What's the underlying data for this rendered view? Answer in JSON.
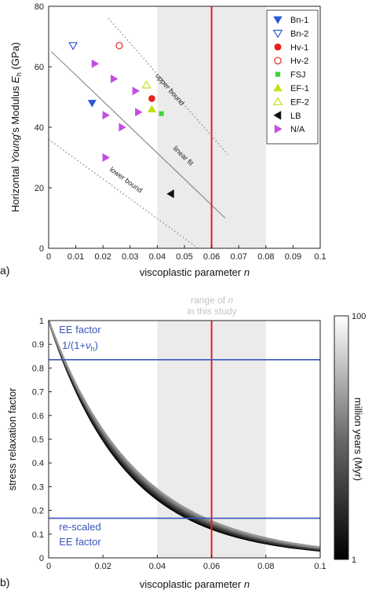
{
  "chart_data": [
    {
      "type": "scatter",
      "panel_label": "a)",
      "xlabel_main": "viscoplastic parameter ",
      "xlabel_var": "n",
      "ylabel_pre": "Horizontal ",
      "ylabel_it": "Young",
      "ylabel_mid": "'s Modulus ",
      "ylabel_var": "E",
      "ylabel_sub": "h",
      "ylabel_unit": " (GPa)",
      "xlim": [
        0,
        0.1
      ],
      "ylim": [
        0,
        80
      ],
      "xticks": [
        "0",
        "0.01",
        "0.02",
        "0.03",
        "0.04",
        "0.05",
        "0.06",
        "0.07",
        "0.08",
        "0.09",
        "0.1"
      ],
      "yticks": [
        "0",
        "20",
        "40",
        "60",
        "80"
      ],
      "shaded_range": [
        0.04,
        0.08
      ],
      "vertical_line": 0.06,
      "fit_lines": [
        {
          "label": "upper bound",
          "x": [
            0.022,
            0.066
          ],
          "y": [
            76,
            31
          ],
          "style": "dotted"
        },
        {
          "label": "linear fit",
          "x": [
            0.001,
            0.065
          ],
          "y": [
            65,
            10
          ],
          "style": "solid"
        },
        {
          "label": "lower bound",
          "x": [
            0.0,
            0.055
          ],
          "y": [
            36,
            0
          ],
          "style": "dotted"
        }
      ],
      "legend": [
        {
          "name": "Bn-1",
          "marker": "tri-down-filled",
          "color": "#2a5bd7"
        },
        {
          "name": "Bn-2",
          "marker": "tri-down-open",
          "color": "#2a5bd7"
        },
        {
          "name": "Hv-1",
          "marker": "circle-filled",
          "color": "#e8201a"
        },
        {
          "name": "Hv-2",
          "marker": "circle-open",
          "color": "#e8201a"
        },
        {
          "name": "FSJ",
          "marker": "square-filled",
          "color": "#3fd23f"
        },
        {
          "name": "EF-1",
          "marker": "tri-up-filled",
          "color": "#c7df13"
        },
        {
          "name": "EF-2",
          "marker": "tri-up-open",
          "color": "#c7df13"
        },
        {
          "name": "LB",
          "marker": "tri-left-filled",
          "color": "#111111"
        },
        {
          "name": "N/A",
          "marker": "tri-right-filled",
          "color": "#c44ee0"
        }
      ],
      "series": [
        {
          "name": "Bn-1",
          "points": [
            [
              0.016,
              48
            ]
          ]
        },
        {
          "name": "Bn-2",
          "points": [
            [
              0.009,
              67
            ]
          ]
        },
        {
          "name": "Hv-1",
          "points": [
            [
              0.038,
              49.5
            ]
          ]
        },
        {
          "name": "Hv-2",
          "points": [
            [
              0.026,
              67
            ]
          ]
        },
        {
          "name": "FSJ",
          "points": [
            [
              0.0415,
              44.5
            ]
          ]
        },
        {
          "name": "EF-1",
          "points": [
            [
              0.038,
              46
            ]
          ]
        },
        {
          "name": "EF-2",
          "points": [
            [
              0.036,
              54
            ]
          ]
        },
        {
          "name": "LB",
          "points": [
            [
              0.045,
              18
            ]
          ]
        },
        {
          "name": "N/A",
          "points": [
            [
              0.017,
              61
            ],
            [
              0.024,
              56
            ],
            [
              0.032,
              52
            ],
            [
              0.021,
              44
            ],
            [
              0.027,
              40
            ],
            [
              0.033,
              45
            ],
            [
              0.021,
              30
            ]
          ]
        }
      ]
    },
    {
      "type": "line",
      "panel_label": "b)",
      "xlabel_main": "viscoplastic parameter ",
      "xlabel_var": "n",
      "ylabel": "stress relaxation factor",
      "xlim": [
        0,
        0.1
      ],
      "ylim": [
        0,
        1
      ],
      "xticks": [
        "0",
        "0.02",
        "0.04",
        "0.06",
        "0.08",
        "0.1"
      ],
      "yticks": [
        "0",
        "0.1",
        "0.2",
        "0.3",
        "0.4",
        "0.5",
        "0.6",
        "0.7",
        "0.8",
        "0.9",
        "1"
      ],
      "shaded_range": [
        0.04,
        0.08
      ],
      "shaded_label_line1": "range of ",
      "shaded_label_var": "n",
      "shaded_label_line2": "in this study",
      "vertical_line": 0.06,
      "hlines": [
        {
          "y": 0.835,
          "label_line1": "EE factor",
          "label_line2_pre": "1/(1+",
          "label_line2_var": "ν",
          "label_line2_sub": "h",
          "label_line2_post": ")"
        },
        {
          "y": 0.167,
          "label_line1": "re-scaled",
          "label_line2_pre": "EE factor"
        }
      ],
      "curve_family": {
        "x_start": 0.0,
        "x_end": 0.1,
        "y_start": 1.0,
        "y_end_min": 0.03,
        "y_end_max": 0.045
      },
      "colorbar": {
        "label": "million years (Myr)",
        "min_label": "1",
        "max_label": "100",
        "scale": "log"
      }
    }
  ],
  "colors": {
    "red": "#e8201a",
    "blue": "#3a55b8",
    "shade": "#ebebeb"
  }
}
